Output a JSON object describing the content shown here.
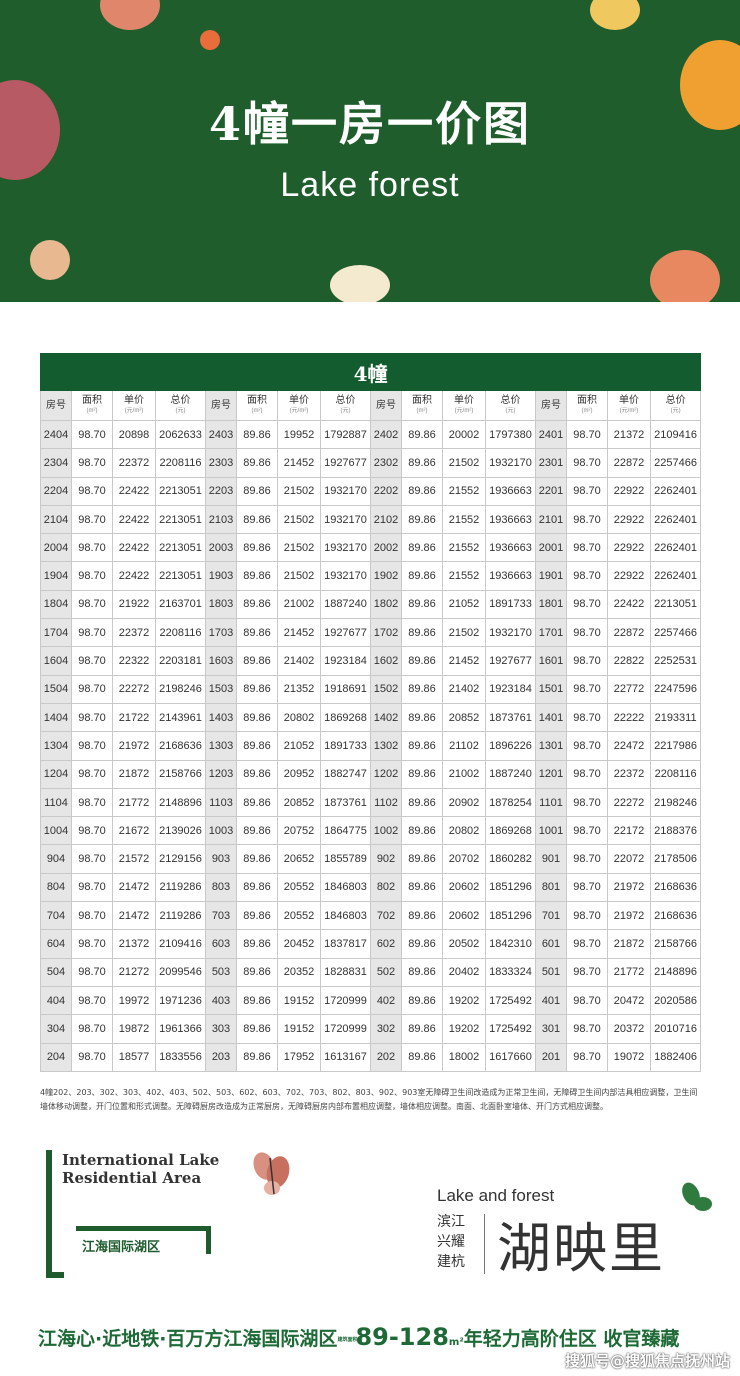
{
  "banner": {
    "title": "4幢一房一价图",
    "logo": "Lake forest"
  },
  "table": {
    "title": "4幢",
    "headers": [
      {
        "label": "房号",
        "unit": ""
      },
      {
        "label": "面积",
        "unit": "(m²)"
      },
      {
        "label": "单价",
        "unit": "(元/m²)"
      },
      {
        "label": "总价",
        "unit": "(元)"
      },
      {
        "label": "房号",
        "unit": ""
      },
      {
        "label": "面积",
        "unit": "(m²)"
      },
      {
        "label": "单价",
        "unit": "(元/m²)"
      },
      {
        "label": "总价",
        "unit": "(元)"
      },
      {
        "label": "房号",
        "unit": ""
      },
      {
        "label": "面积",
        "unit": "(m²)"
      },
      {
        "label": "单价",
        "unit": "(元/m²)"
      },
      {
        "label": "总价",
        "unit": "(元)"
      },
      {
        "label": "房号",
        "unit": ""
      },
      {
        "label": "面积",
        "unit": "(m²)"
      },
      {
        "label": "单价",
        "unit": "(元/m²)"
      },
      {
        "label": "总价",
        "unit": "(元)"
      }
    ],
    "rows": [
      [
        "2404",
        "98.70",
        "20898",
        "2062633",
        "2403",
        "89.86",
        "19952",
        "1792887",
        "2402",
        "89.86",
        "20002",
        "1797380",
        "2401",
        "98.70",
        "21372",
        "2109416"
      ],
      [
        "2304",
        "98.70",
        "22372",
        "2208116",
        "2303",
        "89.86",
        "21452",
        "1927677",
        "2302",
        "89.86",
        "21502",
        "1932170",
        "2301",
        "98.70",
        "22872",
        "2257466"
      ],
      [
        "2204",
        "98.70",
        "22422",
        "2213051",
        "2203",
        "89.86",
        "21502",
        "1932170",
        "2202",
        "89.86",
        "21552",
        "1936663",
        "2201",
        "98.70",
        "22922",
        "2262401"
      ],
      [
        "2104",
        "98.70",
        "22422",
        "2213051",
        "2103",
        "89.86",
        "21502",
        "1932170",
        "2102",
        "89.86",
        "21552",
        "1936663",
        "2101",
        "98.70",
        "22922",
        "2262401"
      ],
      [
        "2004",
        "98.70",
        "22422",
        "2213051",
        "2003",
        "89.86",
        "21502",
        "1932170",
        "2002",
        "89.86",
        "21552",
        "1936663",
        "2001",
        "98.70",
        "22922",
        "2262401"
      ],
      [
        "1904",
        "98.70",
        "22422",
        "2213051",
        "1903",
        "89.86",
        "21502",
        "1932170",
        "1902",
        "89.86",
        "21552",
        "1936663",
        "1901",
        "98.70",
        "22922",
        "2262401"
      ],
      [
        "1804",
        "98.70",
        "21922",
        "2163701",
        "1803",
        "89.86",
        "21002",
        "1887240",
        "1802",
        "89.86",
        "21052",
        "1891733",
        "1801",
        "98.70",
        "22422",
        "2213051"
      ],
      [
        "1704",
        "98.70",
        "22372",
        "2208116",
        "1703",
        "89.86",
        "21452",
        "1927677",
        "1702",
        "89.86",
        "21502",
        "1932170",
        "1701",
        "98.70",
        "22872",
        "2257466"
      ],
      [
        "1604",
        "98.70",
        "22322",
        "2203181",
        "1603",
        "89.86",
        "21402",
        "1923184",
        "1602",
        "89.86",
        "21452",
        "1927677",
        "1601",
        "98.70",
        "22822",
        "2252531"
      ],
      [
        "1504",
        "98.70",
        "22272",
        "2198246",
        "1503",
        "89.86",
        "21352",
        "1918691",
        "1502",
        "89.86",
        "21402",
        "1923184",
        "1501",
        "98.70",
        "22772",
        "2247596"
      ],
      [
        "1404",
        "98.70",
        "21722",
        "2143961",
        "1403",
        "89.86",
        "20802",
        "1869268",
        "1402",
        "89.86",
        "20852",
        "1873761",
        "1401",
        "98.70",
        "22222",
        "2193311"
      ],
      [
        "1304",
        "98.70",
        "21972",
        "2168636",
        "1303",
        "89.86",
        "21052",
        "1891733",
        "1302",
        "89.86",
        "21102",
        "1896226",
        "1301",
        "98.70",
        "22472",
        "2217986"
      ],
      [
        "1204",
        "98.70",
        "21872",
        "2158766",
        "1203",
        "89.86",
        "20952",
        "1882747",
        "1202",
        "89.86",
        "21002",
        "1887240",
        "1201",
        "98.70",
        "22372",
        "2208116"
      ],
      [
        "1104",
        "98.70",
        "21772",
        "2148896",
        "1103",
        "89.86",
        "20852",
        "1873761",
        "1102",
        "89.86",
        "20902",
        "1878254",
        "1101",
        "98.70",
        "22272",
        "2198246"
      ],
      [
        "1004",
        "98.70",
        "21672",
        "2139026",
        "1003",
        "89.86",
        "20752",
        "1864775",
        "1002",
        "89.86",
        "20802",
        "1869268",
        "1001",
        "98.70",
        "22172",
        "2188376"
      ],
      [
        "904",
        "98.70",
        "21572",
        "2129156",
        "903",
        "89.86",
        "20652",
        "1855789",
        "902",
        "89.86",
        "20702",
        "1860282",
        "901",
        "98.70",
        "22072",
        "2178506"
      ],
      [
        "804",
        "98.70",
        "21472",
        "2119286",
        "803",
        "89.86",
        "20552",
        "1846803",
        "802",
        "89.86",
        "20602",
        "1851296",
        "801",
        "98.70",
        "21972",
        "2168636"
      ],
      [
        "704",
        "98.70",
        "21472",
        "2119286",
        "703",
        "89.86",
        "20552",
        "1846803",
        "702",
        "89.86",
        "20602",
        "1851296",
        "701",
        "98.70",
        "21972",
        "2168636"
      ],
      [
        "604",
        "98.70",
        "21372",
        "2109416",
        "603",
        "89.86",
        "20452",
        "1837817",
        "602",
        "89.86",
        "20502",
        "1842310",
        "601",
        "98.70",
        "21872",
        "2158766"
      ],
      [
        "504",
        "98.70",
        "21272",
        "2099546",
        "503",
        "89.86",
        "20352",
        "1828831",
        "502",
        "89.86",
        "20402",
        "1833324",
        "501",
        "98.70",
        "21772",
        "2148896"
      ],
      [
        "404",
        "98.70",
        "19972",
        "1971236",
        "403",
        "89.86",
        "19152",
        "1720999",
        "402",
        "89.86",
        "19202",
        "1725492",
        "401",
        "98.70",
        "20472",
        "2020586"
      ],
      [
        "304",
        "98.70",
        "19872",
        "1961366",
        "303",
        "89.86",
        "19152",
        "1720999",
        "302",
        "89.86",
        "19202",
        "1725492",
        "301",
        "98.70",
        "20372",
        "2010716"
      ],
      [
        "204",
        "98.70",
        "18577",
        "1833556",
        "203",
        "89.86",
        "17952",
        "1613167",
        "202",
        "89.86",
        "18002",
        "1617660",
        "201",
        "98.70",
        "19072",
        "1882406"
      ]
    ]
  },
  "note": "4幢202、203、302、303、402、403、502、503、602、603、702、703、802、803、902、903室无障碍卫生间改造成为正常卫生间，无障碍卫生间内部洁具相应调整，卫生间墙体移动调整，开门位置和形式调整。无障碍厨房改造成为正常厨房，无障碍厨房内部布置相应调整，墙体相应调整。南面、北面卧室墙体、开门方式相应调整。",
  "left_logo": {
    "en": "International Lake Residential Area",
    "cn": "江海国际湖区"
  },
  "right_logo": {
    "en": "Lake and forest",
    "tagline": "滨江兴耀建杭",
    "name": "湖映里"
  },
  "slogan": {
    "part1": "江海心·近地铁·百万方江海国际湖区",
    "small": "建筑面积约",
    "range": "89-128",
    "unit": "m²",
    "part2": "年轻力高阶住区 收官臻藏"
  },
  "watermark": "搜狐号@搜狐焦点抚州站",
  "colors": {
    "banner_green": "#1f5e2c",
    "table_green": "#135c2f",
    "slogan_green": "#1e6a36"
  }
}
